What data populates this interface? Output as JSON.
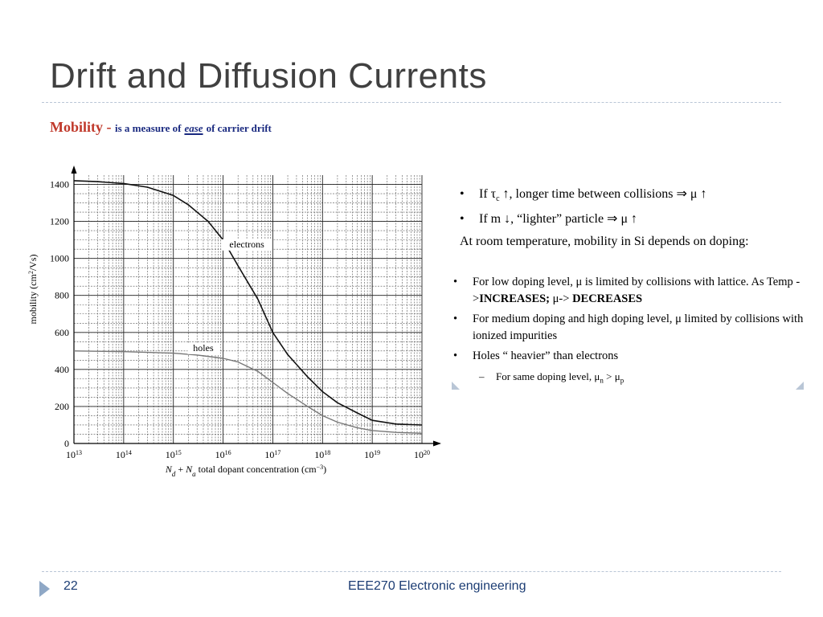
{
  "slide": {
    "title": "Drift and Diffusion Currents",
    "mobility_word": "Mobility",
    "mobility_dash": " - ",
    "mobility_pre": "is a measure of",
    "mobility_ease": "ease",
    "mobility_post": "of carrier drift",
    "page_number": "22",
    "footer": "EEE270 Electronic engineering"
  },
  "bullets_top": [
    {
      "a": "If τ",
      "sub": "c",
      "b": " ↑, longer time between collisions ⇒ μ ↑"
    },
    {
      "a": "If m ↓, “lighter” particle ⇒ μ ↑",
      "sub": "",
      "b": ""
    }
  ],
  "room_temp": "At room temperature, mobility in Si depends on doping:",
  "box": {
    "b1_pre": "For low doping level, μ is limited by collisions with lattice. As Temp ->",
    "b1_bold1": "INCREASES; ",
    "b1_mid": "μ-> ",
    "b1_bold2": "DECREASES",
    "b2": "For medium doping and high doping level, μ limited by collisions with ionized impurities",
    "b3": "Holes “ heavier” than electrons",
    "sub_pre": "For same doping level, μ",
    "sub_n": "n",
    "sub_mid": " > μ",
    "sub_p": "p"
  },
  "colors": {
    "title": "#404040",
    "mobility_red": "#c0392b",
    "mobility_blue": "#1a2a80",
    "footer": "#1c3d74",
    "electron_curve": "#111111",
    "hole_curve": "#777777"
  },
  "icons": {
    "footer_arrow": "triangle-right-icon"
  },
  "chart_data": {
    "type": "line",
    "x_scale": "log",
    "xlim": [
      10000000000000.0,
      1e+20
    ],
    "ylim": [
      0,
      1450
    ],
    "x_ticks": [
      {
        "v": 10000000000000.0,
        "base": "10",
        "exp": "13"
      },
      {
        "v": 100000000000000.0,
        "base": "10",
        "exp": "14"
      },
      {
        "v": 1000000000000000.0,
        "base": "10",
        "exp": "15"
      },
      {
        "v": 1e+16,
        "base": "10",
        "exp": "16"
      },
      {
        "v": 1e+17,
        "base": "10",
        "exp": "17"
      },
      {
        "v": 1e+18,
        "base": "10",
        "exp": "18"
      },
      {
        "v": 1e+19,
        "base": "10",
        "exp": "19"
      },
      {
        "v": 1e+20,
        "base": "10",
        "exp": "20"
      }
    ],
    "y_ticks": [
      0,
      200,
      400,
      600,
      800,
      1000,
      1200,
      1400
    ],
    "ylabel_pre": "mobility (cm",
    "ylabel_sup": "2",
    "ylabel_post": "/Vs)",
    "xlabel_n1": "N",
    "xlabel_s1": "d",
    "xlabel_plus": " + ",
    "xlabel_n2": "N",
    "xlabel_s2": "a",
    "xlabel_rest": " total dopant concentration (cm",
    "xlabel_sup": "−3",
    "xlabel_end": ")",
    "grid": true,
    "series": [
      {
        "name": "electrons",
        "x": [
          10000000000000.0,
          30000000000000.0,
          100000000000000.0,
          300000000000000.0,
          1000000000000000.0,
          2000000000000000.0,
          5000000000000000.0,
          1e+16,
          2e+16,
          5e+16,
          1e+17,
          2e+17,
          5e+17,
          1e+18,
          2e+18,
          5e+18,
          1e+19,
          3e+19,
          1e+20
        ],
        "y": [
          1420,
          1415,
          1405,
          1385,
          1340,
          1290,
          1200,
          1100,
          960,
          780,
          600,
          480,
          360,
          280,
          220,
          165,
          125,
          105,
          100
        ]
      },
      {
        "name": "holes",
        "x": [
          10000000000000.0,
          100000000000000.0,
          1000000000000000.0,
          3000000000000000.0,
          1e+16,
          2e+16,
          5e+16,
          1e+17,
          2e+17,
          5e+17,
          1e+18,
          2e+18,
          5e+18,
          1e+19,
          3e+19,
          1e+20
        ],
        "y": [
          500,
          496,
          488,
          478,
          460,
          440,
          390,
          330,
          270,
          200,
          150,
          115,
          85,
          70,
          60,
          55
        ]
      }
    ]
  }
}
